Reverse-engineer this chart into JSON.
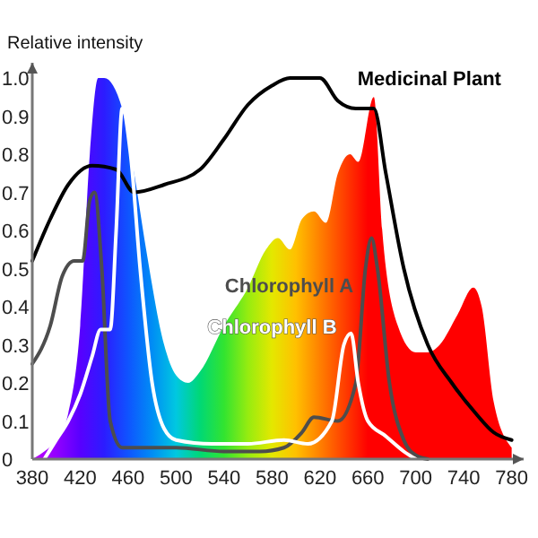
{
  "chart_data": {
    "type": "line",
    "ylabel": "Relative intensity",
    "xlim": [
      380,
      790
    ],
    "ylim": [
      0,
      1.04
    ],
    "xticks": [
      380,
      420,
      460,
      500,
      540,
      580,
      620,
      660,
      700,
      740,
      780
    ],
    "yticks": [
      0,
      0.1,
      0.2,
      0.3,
      0.4,
      0.5,
      0.6,
      0.7,
      0.8,
      0.9,
      {
        "value": 1,
        "label": "1.0"
      }
    ],
    "grid": false,
    "legend": false,
    "marker": "none",
    "line_style": "solid",
    "series": [
      {
        "type": "area",
        "color": "#ff0000",
        "x": [
          380,
          390,
          400,
          410,
          420,
          428,
          435,
          440,
          455,
          465,
          475,
          490,
          500,
          510,
          520,
          540,
          560,
          575,
          585,
          595,
          605,
          615,
          625,
          635,
          645,
          652,
          665,
          672,
          685,
          700,
          710,
          720,
          735,
          748,
          755,
          765,
          780
        ],
        "values": [
          0,
          0.02,
          0.05,
          0.12,
          0.35,
          0.8,
          1.0,
          1.0,
          0.92,
          0.75,
          0.55,
          0.3,
          0.22,
          0.2,
          0.23,
          0.35,
          0.45,
          0.55,
          0.58,
          0.55,
          0.63,
          0.65,
          0.62,
          0.75,
          0.8,
          0.78,
          0.95,
          0.6,
          0.35,
          0.28,
          0.28,
          0.3,
          0.38,
          0.45,
          0.4,
          0.15,
          0.03
        ]
      },
      {
        "name": "Medicinal Plant",
        "color": "#000000",
        "x": [
          380,
          395,
          410,
          430,
          450,
          465,
          490,
          520,
          540,
          560,
          580,
          595,
          620,
          635,
          650,
          665,
          675,
          690,
          710,
          730,
          750,
          765,
          780
        ],
        "values": [
          0.52,
          0.63,
          0.72,
          0.77,
          0.76,
          0.7,
          0.72,
          0.76,
          0.84,
          0.93,
          0.98,
          1.0,
          1.0,
          0.94,
          0.92,
          0.92,
          0.75,
          0.5,
          0.3,
          0.2,
          0.12,
          0.07,
          0.05
        ]
      },
      {
        "name": "Chlorophyll A",
        "color": "#4d4d4d",
        "x": [
          380,
          395,
          405,
          415,
          422,
          428,
          432,
          438,
          445,
          455,
          470,
          500,
          540,
          570,
          590,
          605,
          615,
          635,
          650,
          658,
          663,
          668,
          678,
          690,
          700,
          710
        ],
        "values": [
          0.25,
          0.35,
          0.48,
          0.52,
          0.52,
          0.68,
          0.7,
          0.5,
          0.1,
          0.03,
          0.03,
          0.03,
          0.02,
          0.02,
          0.03,
          0.07,
          0.11,
          0.1,
          0.2,
          0.5,
          0.58,
          0.5,
          0.2,
          0.05,
          0.01,
          0
        ]
      },
      {
        "name": "Chlorophyll B",
        "color": "#ffffff",
        "x": [
          390,
          400,
          410,
          420,
          430,
          437,
          445,
          450,
          455,
          462,
          470,
          480,
          490,
          500,
          530,
          560,
          590,
          610,
          630,
          640,
          646,
          652,
          660,
          675,
          690,
          700
        ],
        "values": [
          0,
          0.05,
          0.1,
          0.17,
          0.27,
          0.34,
          0.34,
          0.6,
          0.92,
          0.8,
          0.5,
          0.2,
          0.08,
          0.05,
          0.04,
          0.04,
          0.05,
          0.04,
          0.1,
          0.3,
          0.33,
          0.2,
          0.1,
          0.06,
          0.02,
          0
        ]
      }
    ]
  }
}
